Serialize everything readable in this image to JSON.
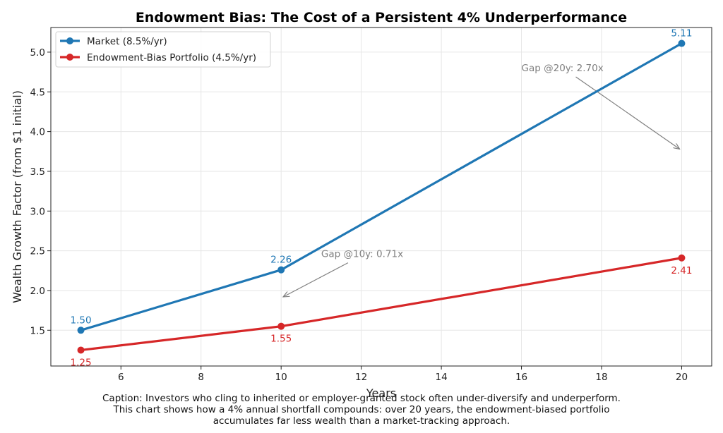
{
  "chart_data": {
    "type": "line",
    "title": "Endowment Bias: The Cost of a Persistent 4% Underperformance",
    "xlabel": "Years",
    "ylabel": "Wealth Growth Factor (from $1 initial)",
    "x": [
      5,
      10,
      20
    ],
    "xlim": [
      4.25,
      20.75
    ],
    "ylim": [
      1.05,
      5.31
    ],
    "xticks": [
      6,
      8,
      10,
      12,
      14,
      16,
      18,
      20
    ],
    "xtick_labels": [
      "6",
      "8",
      "10",
      "12",
      "14",
      "16",
      "18",
      "20"
    ],
    "yticks": [
      1.5,
      2.0,
      2.5,
      3.0,
      3.5,
      4.0,
      4.5,
      5.0
    ],
    "ytick_labels": [
      "1.5",
      "2.0",
      "2.5",
      "3.0",
      "3.5",
      "4.0",
      "4.5",
      "5.0"
    ],
    "grid": true,
    "legend_position": "top-left",
    "series": [
      {
        "name": "Market (8.5%/yr)",
        "color": "#1f77b4",
        "values": [
          1.5,
          2.26,
          5.11
        ],
        "labels": [
          "1.50",
          "2.26",
          "5.11"
        ],
        "label_placement": "above"
      },
      {
        "name": "Endowment-Bias Portfolio (4.5%/yr)",
        "color": "#d62728",
        "values": [
          1.25,
          1.55,
          2.41
        ],
        "labels": [
          "1.25",
          "1.55",
          "2.41"
        ],
        "label_placement": "below"
      }
    ],
    "annotations": [
      {
        "text": "Gap @10y: 0.71x",
        "text_at": [
          11.0,
          2.42
        ],
        "arrow_to": [
          10.05,
          1.92
        ]
      },
      {
        "text": "Gap @20y: 2.70x",
        "text_at": [
          16.0,
          4.76
        ],
        "arrow_to": [
          19.95,
          3.78
        ]
      }
    ]
  },
  "caption": {
    "lines": [
      "Caption: Investors who cling to inherited or employer-granted stock often under-diversify and underperform.",
      "This chart shows how a 4% annual shortfall compounds: over 20 years, the endowment-biased portfolio",
      "accumulates far less wealth than a market-tracking approach."
    ]
  }
}
